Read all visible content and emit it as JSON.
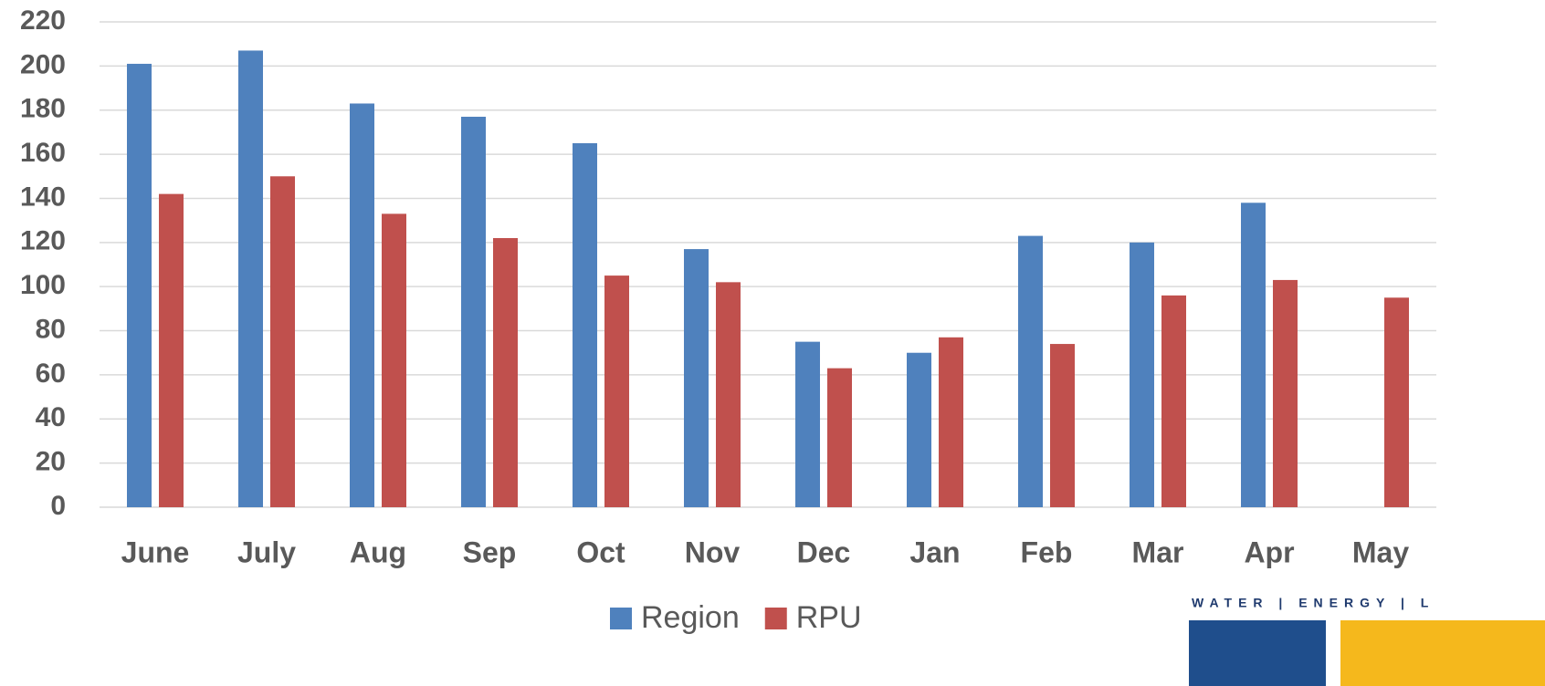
{
  "chart_data": {
    "type": "bar",
    "categories": [
      "June",
      "July",
      "Aug",
      "Sep",
      "Oct",
      "Nov",
      "Dec",
      "Jan",
      "Feb",
      "Mar",
      "Apr",
      "May"
    ],
    "series": [
      {
        "name": "Region",
        "color": "#4f81bd",
        "values": [
          201,
          207,
          183,
          177,
          165,
          117,
          75,
          70,
          123,
          120,
          138,
          null
        ]
      },
      {
        "name": "RPU",
        "color": "#c0504d",
        "values": [
          142,
          150,
          133,
          122,
          105,
          102,
          63,
          77,
          74,
          96,
          103,
          95
        ]
      }
    ],
    "ylim": [
      0,
      220
    ],
    "yticks": [
      0,
      20,
      40,
      60,
      80,
      100,
      120,
      140,
      160,
      180,
      200,
      220
    ],
    "grid": true,
    "legend": "bottom"
  },
  "logo": {
    "text": "WATER | ENERGY | L"
  }
}
